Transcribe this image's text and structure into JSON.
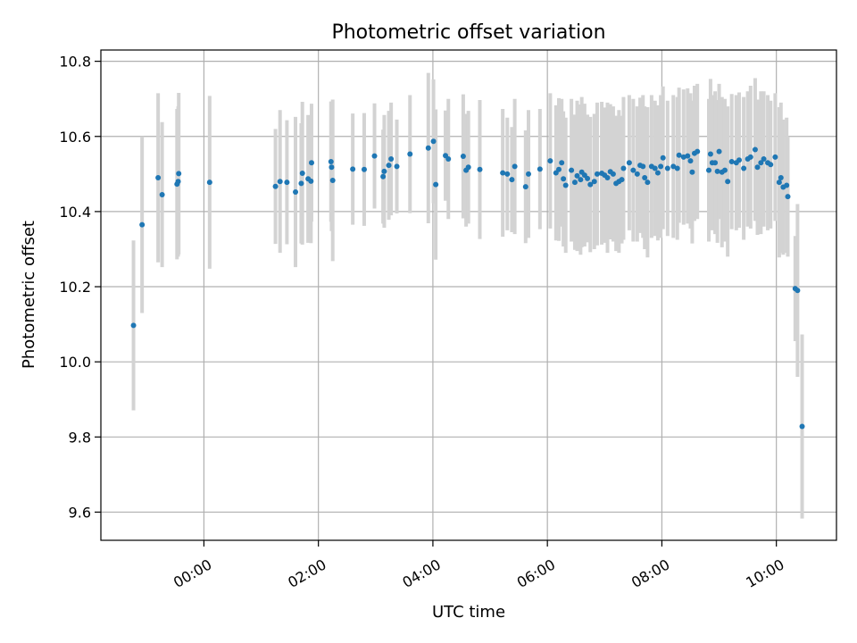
{
  "chart_data": {
    "type": "scatter",
    "title": "Photometric offset variation",
    "xlabel": "UTC time",
    "ylabel": "Photometric offset",
    "x_unit": "hours UTC",
    "xlim": [
      -1.8,
      11.05
    ],
    "ylim": [
      9.525,
      10.83
    ],
    "x_ticks": [
      {
        "value": 0,
        "label": "00:00"
      },
      {
        "value": 2,
        "label": "02:00"
      },
      {
        "value": 4,
        "label": "04:00"
      },
      {
        "value": 6,
        "label": "06:00"
      },
      {
        "value": 8,
        "label": "08:00"
      },
      {
        "value": 10,
        "label": "10:00"
      }
    ],
    "y_ticks": [
      {
        "value": 9.6,
        "label": "9.6"
      },
      {
        "value": 9.8,
        "label": "9.8"
      },
      {
        "value": 10.0,
        "label": "10.0"
      },
      {
        "value": 10.2,
        "label": "10.2"
      },
      {
        "value": 10.4,
        "label": "10.4"
      },
      {
        "value": 10.6,
        "label": "10.6"
      },
      {
        "value": 10.8,
        "label": "10.8"
      }
    ],
    "grid": true,
    "colors": {
      "point": "#1f77b4",
      "errorbar": "#d3d3d3"
    },
    "points": [
      [
        -1.23,
        10.097,
        0.226
      ],
      [
        -1.08,
        10.365,
        0.235
      ],
      [
        -0.8,
        10.49,
        0.225
      ],
      [
        -0.73,
        10.445,
        0.193
      ],
      [
        -0.47,
        10.473,
        0.2
      ],
      [
        -0.45,
        10.48,
        0.2
      ],
      [
        -0.44,
        10.501,
        0.215
      ],
      [
        0.1,
        10.478,
        0.23
      ],
      [
        1.25,
        10.467,
        0.153
      ],
      [
        1.33,
        10.48,
        0.19
      ],
      [
        1.45,
        10.478,
        0.165
      ],
      [
        1.6,
        10.452,
        0.2
      ],
      [
        1.7,
        10.475,
        0.16
      ],
      [
        1.72,
        10.502,
        0.19
      ],
      [
        1.82,
        10.487,
        0.17
      ],
      [
        1.87,
        10.481,
        0.165
      ],
      [
        1.88,
        10.53,
        0.157
      ],
      [
        2.22,
        10.533,
        0.16
      ],
      [
        2.23,
        10.518,
        0.17
      ],
      [
        2.25,
        10.483,
        0.215
      ],
      [
        2.6,
        10.513,
        0.148
      ],
      [
        2.8,
        10.512,
        0.15
      ],
      [
        2.98,
        10.548,
        0.14
      ],
      [
        3.13,
        10.493,
        0.125
      ],
      [
        3.15,
        10.507,
        0.15
      ],
      [
        3.23,
        10.523,
        0.145
      ],
      [
        3.27,
        10.54,
        0.15
      ],
      [
        3.37,
        10.52,
        0.125
      ],
      [
        3.6,
        10.553,
        0.157
      ],
      [
        3.92,
        10.569,
        0.2
      ],
      [
        4.01,
        10.587,
        0.165
      ],
      [
        4.05,
        10.472,
        0.2
      ],
      [
        4.22,
        10.549,
        0.12
      ],
      [
        4.27,
        10.54,
        0.16
      ],
      [
        4.53,
        10.547,
        0.165
      ],
      [
        4.58,
        10.51,
        0.15
      ],
      [
        4.62,
        10.518,
        0.15
      ],
      [
        4.82,
        10.512,
        0.185
      ],
      [
        5.22,
        10.503,
        0.17
      ],
      [
        5.3,
        10.5,
        0.15
      ],
      [
        5.38,
        10.485,
        0.14
      ],
      [
        5.43,
        10.52,
        0.18
      ],
      [
        5.62,
        10.466,
        0.15
      ],
      [
        5.67,
        10.5,
        0.17
      ],
      [
        5.87,
        10.513,
        0.16
      ],
      [
        6.05,
        10.535,
        0.18
      ],
      [
        6.15,
        10.503,
        0.18
      ],
      [
        6.2,
        10.512,
        0.19
      ],
      [
        6.25,
        10.53,
        0.17
      ],
      [
        6.28,
        10.487,
        0.18
      ],
      [
        6.32,
        10.47,
        0.18
      ],
      [
        6.42,
        10.51,
        0.19
      ],
      [
        6.48,
        10.478,
        0.18
      ],
      [
        6.52,
        10.495,
        0.2
      ],
      [
        6.58,
        10.485,
        0.2
      ],
      [
        6.6,
        10.505,
        0.2
      ],
      [
        6.65,
        10.497,
        0.19
      ],
      [
        6.7,
        10.488,
        0.17
      ],
      [
        6.75,
        10.472,
        0.18
      ],
      [
        6.82,
        10.48,
        0.18
      ],
      [
        6.87,
        10.5,
        0.19
      ],
      [
        6.95,
        10.502,
        0.19
      ],
      [
        7.0,
        10.497,
        0.18
      ],
      [
        7.05,
        10.49,
        0.2
      ],
      [
        7.1,
        10.506,
        0.18
      ],
      [
        7.15,
        10.5,
        0.18
      ],
      [
        7.2,
        10.475,
        0.18
      ],
      [
        7.25,
        10.48,
        0.19
      ],
      [
        7.3,
        10.485,
        0.17
      ],
      [
        7.33,
        10.515,
        0.19
      ],
      [
        7.43,
        10.53,
        0.18
      ],
      [
        7.5,
        10.51,
        0.19
      ],
      [
        7.57,
        10.5,
        0.18
      ],
      [
        7.62,
        10.523,
        0.18
      ],
      [
        7.67,
        10.52,
        0.19
      ],
      [
        7.7,
        10.49,
        0.19
      ],
      [
        7.75,
        10.478,
        0.2
      ],
      [
        7.82,
        10.52,
        0.19
      ],
      [
        7.88,
        10.515,
        0.18
      ],
      [
        7.93,
        10.503,
        0.18
      ],
      [
        7.98,
        10.52,
        0.19
      ],
      [
        8.02,
        10.543,
        0.19
      ],
      [
        8.1,
        10.515,
        0.18
      ],
      [
        8.2,
        10.52,
        0.19
      ],
      [
        8.27,
        10.515,
        0.19
      ],
      [
        8.3,
        10.55,
        0.18
      ],
      [
        8.38,
        10.545,
        0.18
      ],
      [
        8.45,
        10.548,
        0.18
      ],
      [
        8.5,
        10.535,
        0.18
      ],
      [
        8.53,
        10.505,
        0.19
      ],
      [
        8.57,
        10.555,
        0.18
      ],
      [
        8.62,
        10.56,
        0.18
      ],
      [
        8.82,
        10.51,
        0.19
      ],
      [
        8.85,
        10.553,
        0.2
      ],
      [
        8.88,
        10.53,
        0.18
      ],
      [
        8.93,
        10.53,
        0.19
      ],
      [
        8.97,
        10.507,
        0.19
      ],
      [
        9.0,
        10.56,
        0.18
      ],
      [
        9.05,
        10.505,
        0.2
      ],
      [
        9.1,
        10.51,
        0.19
      ],
      [
        9.15,
        10.48,
        0.2
      ],
      [
        9.22,
        10.533,
        0.18
      ],
      [
        9.3,
        10.53,
        0.18
      ],
      [
        9.35,
        10.537,
        0.18
      ],
      [
        9.43,
        10.515,
        0.19
      ],
      [
        9.5,
        10.54,
        0.18
      ],
      [
        9.55,
        10.545,
        0.19
      ],
      [
        9.63,
        10.565,
        0.19
      ],
      [
        9.67,
        10.518,
        0.18
      ],
      [
        9.73,
        10.53,
        0.19
      ],
      [
        9.78,
        10.54,
        0.18
      ],
      [
        9.85,
        10.53,
        0.18
      ],
      [
        9.9,
        10.525,
        0.17
      ],
      [
        9.98,
        10.545,
        0.17
      ],
      [
        10.05,
        10.478,
        0.2
      ],
      [
        10.08,
        10.49,
        0.2
      ],
      [
        10.12,
        10.465,
        0.18
      ],
      [
        10.18,
        10.47,
        0.18
      ],
      [
        10.2,
        10.44,
        0.16
      ],
      [
        10.33,
        10.195,
        0.14
      ],
      [
        10.37,
        10.19,
        0.23
      ],
      [
        10.45,
        9.828,
        0.245
      ]
    ]
  }
}
